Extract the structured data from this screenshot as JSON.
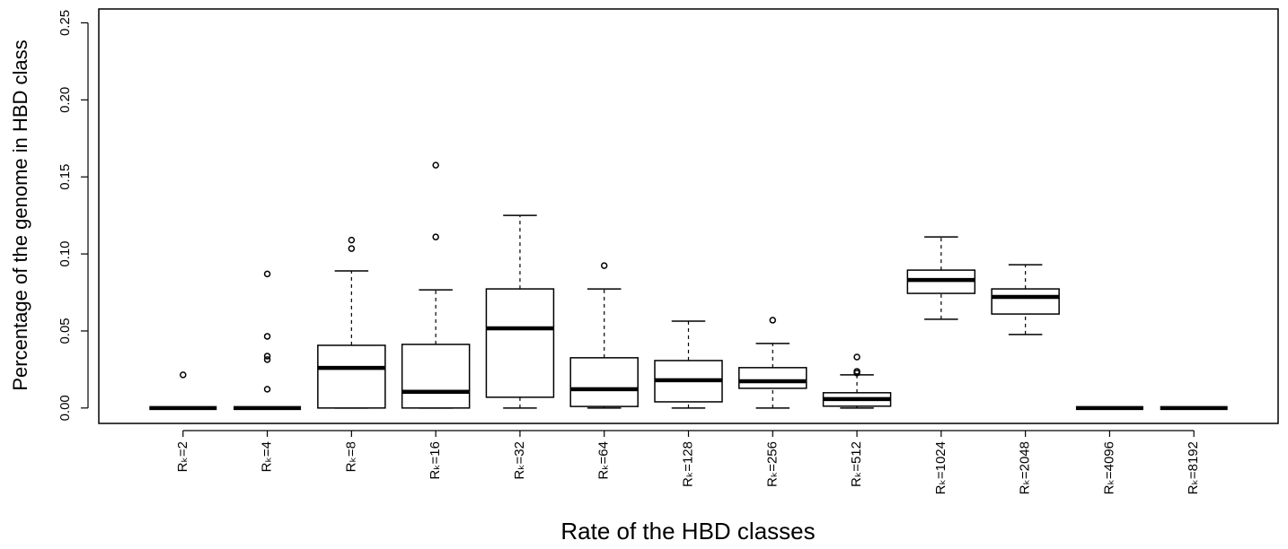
{
  "chart_data": {
    "type": "boxplot",
    "y_label": "Percentage of the genome in HBD class",
    "x_label": "Rate of the HBD classes",
    "categories": [
      "Rₖ=2",
      "Rₖ=4",
      "Rₖ=8",
      "Rₖ=16",
      "Rₖ=32",
      "Rₖ=64",
      "Rₖ=128",
      "Rₖ=256",
      "Rₖ=512",
      "Rₖ=1024",
      "Rₖ=2048",
      "Rₖ=4096",
      "Rₖ=8192"
    ],
    "boxes": [
      {
        "min": 0,
        "q1": 0,
        "median": 0,
        "q3": 0,
        "max": 0,
        "outliers": [
          0.0215
        ]
      },
      {
        "min": 0,
        "q1": 0,
        "median": 0,
        "q3": 0,
        "max": 0,
        "outliers": [
          0.087,
          0.0465,
          0.0337,
          0.0314,
          0.0122
        ]
      },
      {
        "min": 0,
        "q1": 0,
        "median": 0.026,
        "q3": 0.0407,
        "max": 0.089,
        "outliers": [
          0.109,
          0.1035
        ]
      },
      {
        "min": 0,
        "q1": 0,
        "median": 0.0105,
        "q3": 0.0413,
        "max": 0.0767,
        "outliers": [
          0.1576,
          0.111
        ]
      },
      {
        "min": 0,
        "q1": 0.007,
        "median": 0.0517,
        "q3": 0.0773,
        "max": 0.125,
        "outliers": []
      },
      {
        "min": 0,
        "q1": 0.001,
        "median": 0.0122,
        "q3": 0.0326,
        "max": 0.0773,
        "outliers": [
          0.0924
        ]
      },
      {
        "min": 0,
        "q1": 0.004,
        "median": 0.018,
        "q3": 0.0308,
        "max": 0.0564,
        "outliers": []
      },
      {
        "min": 0,
        "q1": 0.0128,
        "median": 0.0174,
        "q3": 0.0262,
        "max": 0.0419,
        "outliers": [
          0.057
        ]
      },
      {
        "min": 0,
        "q1": 0.0012,
        "median": 0.0058,
        "q3": 0.0099,
        "max": 0.0215,
        "outliers": [
          0.0227,
          0.0238,
          0.0331
        ]
      },
      {
        "min": 0.0576,
        "q1": 0.0744,
        "median": 0.0831,
        "q3": 0.0895,
        "max": 0.111,
        "outliers": []
      },
      {
        "min": 0.0477,
        "q1": 0.061,
        "median": 0.0721,
        "q3": 0.0773,
        "max": 0.093,
        "outliers": []
      },
      {
        "min": 0,
        "q1": 0,
        "median": 0,
        "q3": 0,
        "max": 0,
        "outliers": []
      },
      {
        "min": 0,
        "q1": 0,
        "median": 0,
        "q3": 0,
        "max": 0,
        "outliers": []
      }
    ],
    "color": "#000000",
    "ylim": [
      -0.01,
      0.259
    ],
    "yticks": [
      {
        "value": 0,
        "label": "0.00"
      },
      {
        "value": 0.05,
        "label": "0.05"
      },
      {
        "value": 0.1,
        "label": "0.10"
      },
      {
        "value": 0.15,
        "label": "0.15"
      },
      {
        "value": 0.2,
        "label": "0.20"
      },
      {
        "value": 0.25,
        "label": "0.25"
      }
    ]
  }
}
